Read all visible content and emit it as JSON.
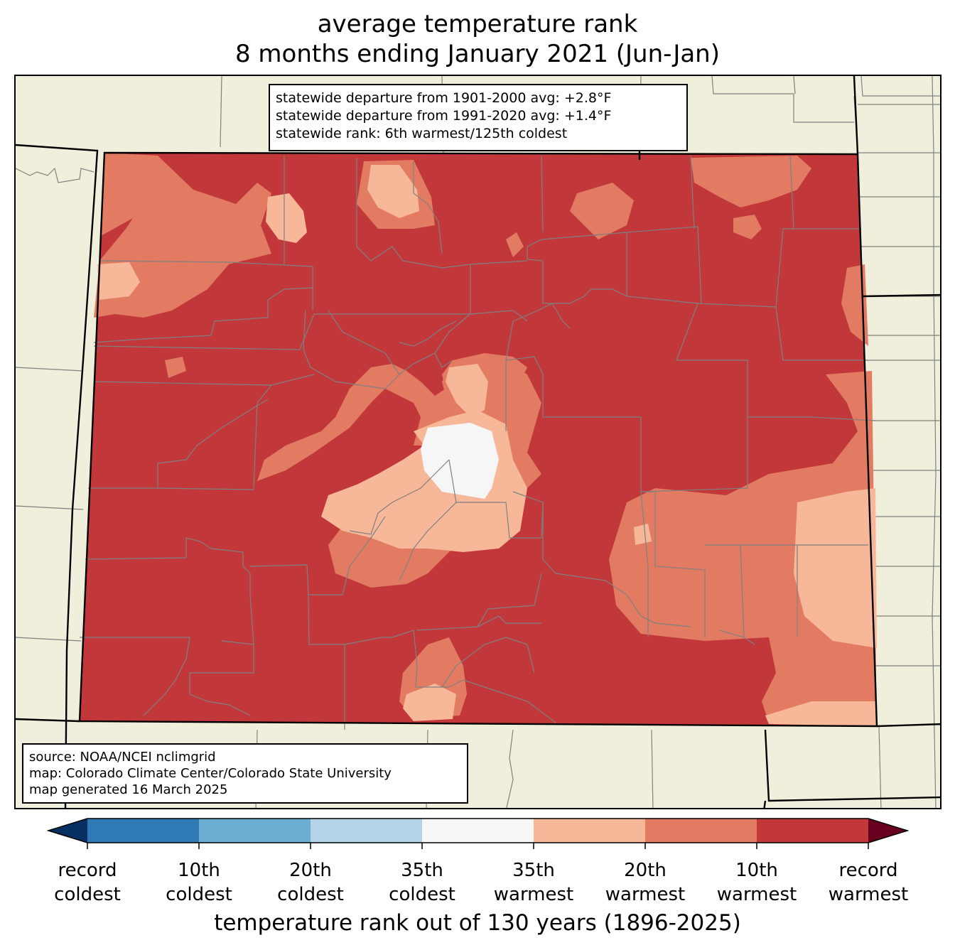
{
  "title_line1": "average temperature rank",
  "title_line2": "8 months ending January 2021 (Jun-Jan)",
  "stats": {
    "line1": "statewide departure from 1901-2000 avg: +2.8°F",
    "line2": "statewide departure from 1991-2020 avg: +1.4°F",
    "line3": "statewide rank: 6th warmest/125th coldest"
  },
  "source": {
    "line1": "source: NOAA/NCEI nclimgrid",
    "line2": "map: Colorado Climate Center/Colorado State University",
    "line3": "map generated 16 March 2025"
  },
  "colorbar": {
    "title": "temperature rank out of 130 years (1896-2025)",
    "ticks": [
      {
        "line1": "record",
        "line2": "coldest"
      },
      {
        "line1": "10th",
        "line2": "coldest"
      },
      {
        "line1": "20th",
        "line2": "coldest"
      },
      {
        "line1": "35th",
        "line2": "coldest"
      },
      {
        "line1": "35th",
        "line2": "warmest"
      },
      {
        "line1": "20th",
        "line2": "warmest"
      },
      {
        "line1": "10th",
        "line2": "warmest"
      },
      {
        "line1": "record",
        "line2": "warmest"
      }
    ],
    "colors": {
      "record_coldest": "#053061",
      "coldest_10": "#2f79b5",
      "coldest_20": "#6bacd1",
      "coldest_35": "#b5d4e9",
      "normal": "#f7f6f6",
      "warmest_35": "#f7b799",
      "warmest_20": "#e27b62",
      "warmest_10": "#c1373a",
      "record_warmest": "#67001f"
    }
  },
  "map_colors": {
    "background": "#f0efdc",
    "state_border": "#000000",
    "county_border": "#808080"
  }
}
